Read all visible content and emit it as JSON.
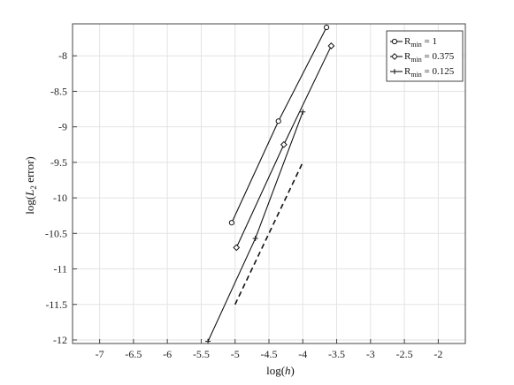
{
  "chart_data": {
    "type": "line",
    "xlabel": "log(h)",
    "ylabel": "log(L2 error)",
    "xlim": [
      -7.4,
      -1.6
    ],
    "ylim": [
      -12.05,
      -7.55
    ],
    "xticks": [
      -7,
      -6.5,
      -6,
      -5.5,
      -5,
      -4.5,
      -4,
      -3.5,
      -3,
      -2.5,
      -2
    ],
    "yticks": [
      -12,
      -11.5,
      -11,
      -10.5,
      -10,
      -9.5,
      -9,
      -8.5,
      -8
    ],
    "xtick_labels": [
      "-7",
      "-6.5",
      "-6",
      "-5.5",
      "-5",
      "-4.5",
      "-4",
      "-3.5",
      "-3",
      "-2.5",
      "-2"
    ],
    "ytick_labels": [
      "-12",
      "-11.5",
      "-11",
      "-10.5",
      "-10",
      "-9.5",
      "-9",
      "-8.5",
      "-8"
    ],
    "grid": true,
    "legend_position": "top-right",
    "series": [
      {
        "name": "R_min = 1",
        "marker": "circle",
        "style": "solid",
        "x": [
          -5.05,
          -4.36,
          -3.65
        ],
        "y": [
          -10.35,
          -8.92,
          -7.6
        ]
      },
      {
        "name": "R_min = 0.375",
        "marker": "diamond",
        "style": "solid",
        "x": [
          -4.98,
          -4.28,
          -3.58
        ],
        "y": [
          -10.7,
          -9.25,
          -7.86
        ]
      },
      {
        "name": "R_min = 0.125",
        "marker": "plus",
        "style": "solid",
        "x": [
          -5.4,
          -4.7,
          -4.0
        ],
        "y": [
          -12.02,
          -10.57,
          -8.79
        ]
      },
      {
        "name": "",
        "marker": "none",
        "style": "dashed",
        "x": [
          -5.0,
          -4.0
        ],
        "y": [
          -11.5,
          -9.5
        ]
      }
    ],
    "legend": [
      {
        "pre": "R",
        "sub": "min",
        "post": " = 1"
      },
      {
        "pre": "R",
        "sub": "min",
        "post": " = 0.375"
      },
      {
        "pre": "R",
        "sub": "min",
        "post": " = 0.125"
      }
    ],
    "ylabel_parts": {
      "pre": "log(",
      "ital": "L",
      "sub": "2",
      "post": " error)"
    },
    "xlabel_parts": {
      "pre": "log(",
      "ital": "h",
      "post": ")"
    }
  }
}
